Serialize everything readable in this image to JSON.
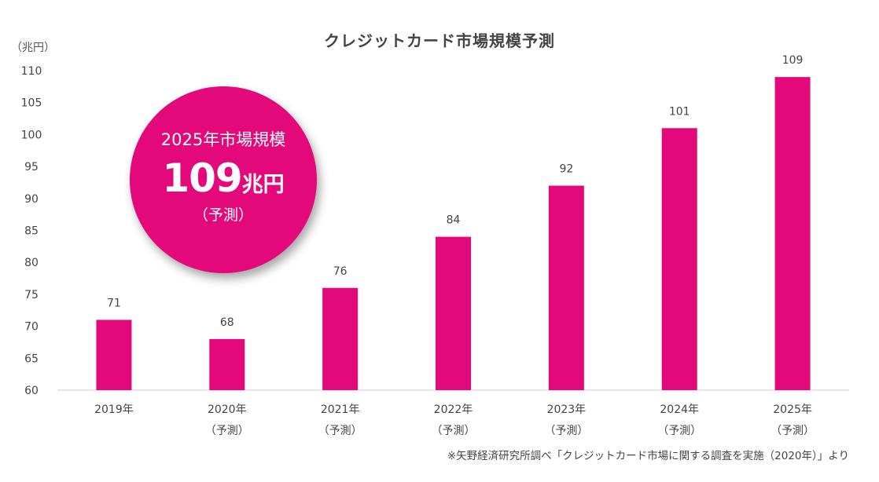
{
  "chart_data": {
    "type": "bar",
    "title": "クレジットカード市場規模予測",
    "ylabel": "（兆円）",
    "ylim": [
      60,
      110
    ],
    "yticks": [
      60,
      65,
      70,
      75,
      80,
      85,
      90,
      95,
      100,
      105,
      110
    ],
    "categories": [
      [
        "2019年"
      ],
      [
        "2020年",
        "（予測）"
      ],
      [
        "2021年",
        "（予測）"
      ],
      [
        "2022年",
        "（予測）"
      ],
      [
        "2023年",
        "（予測）"
      ],
      [
        "2024年",
        "（予測）"
      ],
      [
        "2025年",
        "（予測）"
      ]
    ],
    "values": [
      71,
      68,
      76,
      84,
      92,
      101,
      109
    ],
    "data_labels": [
      "71",
      "68",
      "76",
      "84",
      "92",
      "101",
      "109"
    ],
    "bar_color": "#e4097a",
    "grid": false
  },
  "callout": {
    "label": "2025年市場規模",
    "value": "109",
    "unit": "兆円",
    "note": "（予測）",
    "color": "#e4097a"
  },
  "source_note": "※矢野経済研究所調べ「クレジットカード市場に関する調査を実施（2020年）」より",
  "colors": {
    "axis": "#cccccc",
    "text": "#444444"
  }
}
